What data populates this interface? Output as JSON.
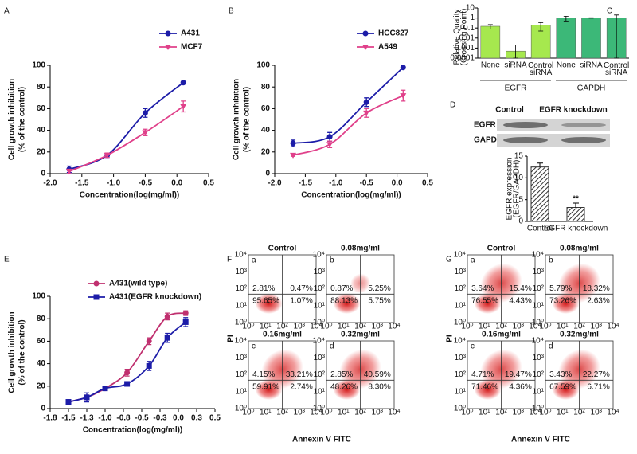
{
  "chart_data": [
    {
      "type": "line",
      "panel": "A",
      "xlabel": "Concentration(log(mg/ml))",
      "ylabel": [
        "Cell growth inhibition",
        "(% of the control)"
      ],
      "xlim": [
        -2,
        0.5
      ],
      "xticks": [
        {
          "value": -2,
          "label": "-2.0"
        },
        -1.5,
        {
          "value": -1,
          "label": "-1.0"
        },
        -0.5,
        {
          "value": 0,
          "label": "0.0"
        },
        0.5
      ],
      "ylim": [
        0,
        100
      ],
      "yticks": [
        0,
        20,
        40,
        60,
        80,
        100
      ],
      "x": [
        -1.7,
        -1.1,
        -0.5,
        0.1
      ],
      "series": [
        {
          "name": "A431",
          "color": "#1c1ca8",
          "marker": "circle",
          "values": [
            4,
            17,
            56,
            84
          ],
          "errors": [
            3,
            2,
            4,
            1
          ]
        },
        {
          "name": "MCF7",
          "color": "#e0408a",
          "marker": "triangle",
          "values": [
            2,
            17,
            38,
            62
          ],
          "errors": [
            2,
            2,
            3,
            5
          ]
        }
      ]
    },
    {
      "type": "line",
      "panel": "B",
      "xlabel": "Concentration(log(mg/ml))",
      "ylabel": [
        "Cell growth inhibition",
        "(% of the control)"
      ],
      "xlim": [
        -2,
        0.5
      ],
      "xticks": [
        {
          "value": -2,
          "label": "-2.0"
        },
        -1.5,
        {
          "value": -1,
          "label": "-1.0"
        },
        -0.5,
        {
          "value": 0,
          "label": "0.0"
        },
        0.5
      ],
      "ylim": [
        0,
        100
      ],
      "yticks": [
        0,
        20,
        40,
        60,
        80,
        100
      ],
      "x": [
        -1.7,
        -1.1,
        -0.5,
        0.1
      ],
      "series": [
        {
          "name": "HCC827",
          "color": "#1c1ca8",
          "marker": "circle",
          "values": [
            28,
            34,
            66,
            98
          ],
          "errors": [
            3,
            4,
            4,
            1
          ]
        },
        {
          "name": "A549",
          "color": "#e0408a",
          "marker": "triangle",
          "values": [
            17,
            27,
            56,
            72
          ],
          "errors": [
            1,
            3,
            4,
            5
          ]
        }
      ]
    },
    {
      "type": "logbar",
      "panel": "C",
      "ylabel": [
        "Relative Quality",
        "(Crossing Point)"
      ],
      "categories": [
        "None",
        "siRNA",
        "Control siRNA",
        "None",
        "siRNA",
        "Control siRNA"
      ],
      "groups": [
        "EGFR",
        "GAPDH"
      ],
      "values": [
        0.15,
        0.0005,
        0.2,
        1,
        1,
        1
      ],
      "errors": [
        0.07,
        0.0015,
        0.15,
        0.5,
        0.05,
        1
      ],
      "colors": [
        "#a6e84e",
        "#a6e84e",
        "#a6e84e",
        "#3cb878",
        "#3cb878",
        "#3cb878"
      ],
      "log_scale": true,
      "ylim": [
        0.0001,
        10
      ],
      "yticks": [
        10,
        1,
        0.1,
        0.01,
        0.001,
        0.0001
      ]
    },
    {
      "type": "blotbar",
      "panel": "D",
      "blot_columns": [
        "Control",
        "EGFR knockdown"
      ],
      "blot_rows": [
        "EGFR",
        "GAPDH"
      ],
      "ylabel": [
        "EGFR expression",
        "(EGFR/GAPDH)"
      ],
      "categories": [
        "Control",
        "EGFR knockdown"
      ],
      "values": [
        12.5,
        3.2
      ],
      "errors": [
        0.9,
        1
      ],
      "annotation": "**",
      "color": "#333333",
      "ylim": [
        0,
        15
      ],
      "yticks": [
        0,
        5,
        10,
        15
      ]
    },
    {
      "type": "line",
      "panel": "E",
      "xlabel": "Concentration(log(mg/ml))",
      "ylabel": [
        "Cell growth inhibition",
        "(% of the control)"
      ],
      "xlim": [
        -1.75,
        0.5
      ],
      "xticks": [
        {
          "value": -1.75,
          "label": "-1.8"
        },
        -1.5,
        {
          "value": -1.25,
          "label": "-1.3"
        },
        {
          "value": -1,
          "label": "-1.0"
        },
        {
          "value": -0.75,
          "label": "-0.8"
        },
        -0.5,
        {
          "value": -0.25,
          "label": "-0.3"
        },
        {
          "value": 0,
          "label": "0.0"
        },
        {
          "value": 0.25,
          "label": "0.3"
        },
        0.5
      ],
      "ylim": [
        0,
        100
      ],
      "yticks": [
        0,
        20,
        40,
        60,
        80,
        100
      ],
      "x": [
        -1.5,
        -1.25,
        -1.0,
        -0.7,
        -0.4,
        -0.15,
        0.1
      ],
      "series": [
        {
          "name": "A431(wild type)",
          "color": "#c0306f",
          "marker": "circle",
          "values": [
            6,
            10,
            18,
            32,
            60,
            82,
            85
          ],
          "errors": [
            1,
            2,
            1,
            3,
            3,
            3,
            2
          ]
        },
        {
          "name": "A431(EGFR knockdown)",
          "color": "#1c1ca8",
          "marker": "square",
          "values": [
            6,
            10,
            18,
            22,
            38,
            63,
            77
          ],
          "errors": [
            1,
            4,
            1,
            2,
            4,
            4,
            4
          ]
        }
      ]
    },
    {
      "type": "flow",
      "panel": "F",
      "xlabel": "Annexin V FITC",
      "ylabel": "PI",
      "axis_ticks": [
        "10⁰",
        "10¹",
        "10²",
        "10³",
        "10⁴"
      ],
      "panels": [
        {
          "label": "a",
          "title": "Control",
          "values": [
            2.81,
            0.47,
            95.65,
            1.07
          ],
          "value_labels": [
            "2.81%",
            "0.47%",
            "95.65%",
            "1.07%"
          ]
        },
        {
          "label": "b",
          "title": "0.08mg/ml",
          "values": [
            0.87,
            5.25,
            88.13,
            5.75
          ],
          "value_labels": [
            "0.87%",
            "5.25%",
            "88.13%",
            "5.75%"
          ]
        },
        {
          "label": "c",
          "title": "0.16mg/ml",
          "values": [
            4.15,
            33.21,
            59.91,
            2.74
          ],
          "value_labels": [
            "4.15%",
            "33.21%",
            "59.91%",
            "2.74%"
          ]
        },
        {
          "label": "d",
          "title": "0.32mg/ml",
          "values": [
            2.85,
            40.59,
            48.26,
            8.3
          ],
          "value_labels": [
            "2.85%",
            "40.59%",
            "48.26%",
            "8.30%"
          ]
        }
      ]
    },
    {
      "type": "flow",
      "panel": "G",
      "xlabel": "Annexin V FITC",
      "ylabel": "PI",
      "axis_ticks": [
        "10⁰",
        "10¹",
        "10²",
        "10³",
        "10⁴"
      ],
      "panels": [
        {
          "label": "a",
          "title": "Control",
          "values": [
            3.64,
            15.4,
            76.55,
            4.43
          ],
          "value_labels": [
            "3.64%",
            "15.4%",
            "76.55%",
            "4.43%"
          ]
        },
        {
          "label": "b",
          "title": "0.08mg/ml",
          "values": [
            5.79,
            18.32,
            73.26,
            2.63
          ],
          "value_labels": [
            "5.79%",
            "18.32%",
            "73.26%",
            "2.63%"
          ]
        },
        {
          "label": "c",
          "title": "0.16mg/ml",
          "values": [
            4.71,
            19.47,
            71.46,
            4.36
          ],
          "value_labels": [
            "4.71%",
            "19.47%",
            "71.46%",
            "4.36%"
          ]
        },
        {
          "label": "d",
          "title": "0.32mg/ml",
          "values": [
            3.43,
            22.27,
            67.59,
            6.71
          ],
          "value_labels": [
            "3.43%",
            "22.27%",
            "67.59%",
            "6.71%"
          ]
        }
      ]
    }
  ]
}
